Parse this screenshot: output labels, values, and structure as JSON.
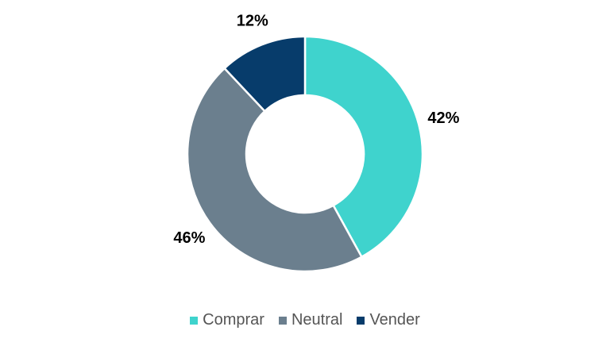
{
  "chart_data": {
    "type": "pie",
    "variant": "donut",
    "categories": [
      "Comprar",
      "Neutral",
      "Vender"
    ],
    "values": [
      42,
      46,
      12
    ],
    "labels": [
      "42%",
      "46%",
      "12%"
    ],
    "colors": [
      "#3fd3cd",
      "#6b7f8e",
      "#073c6b"
    ],
    "start": "12 o'clock",
    "direction": "clockwise",
    "legend_position": "bottom"
  }
}
